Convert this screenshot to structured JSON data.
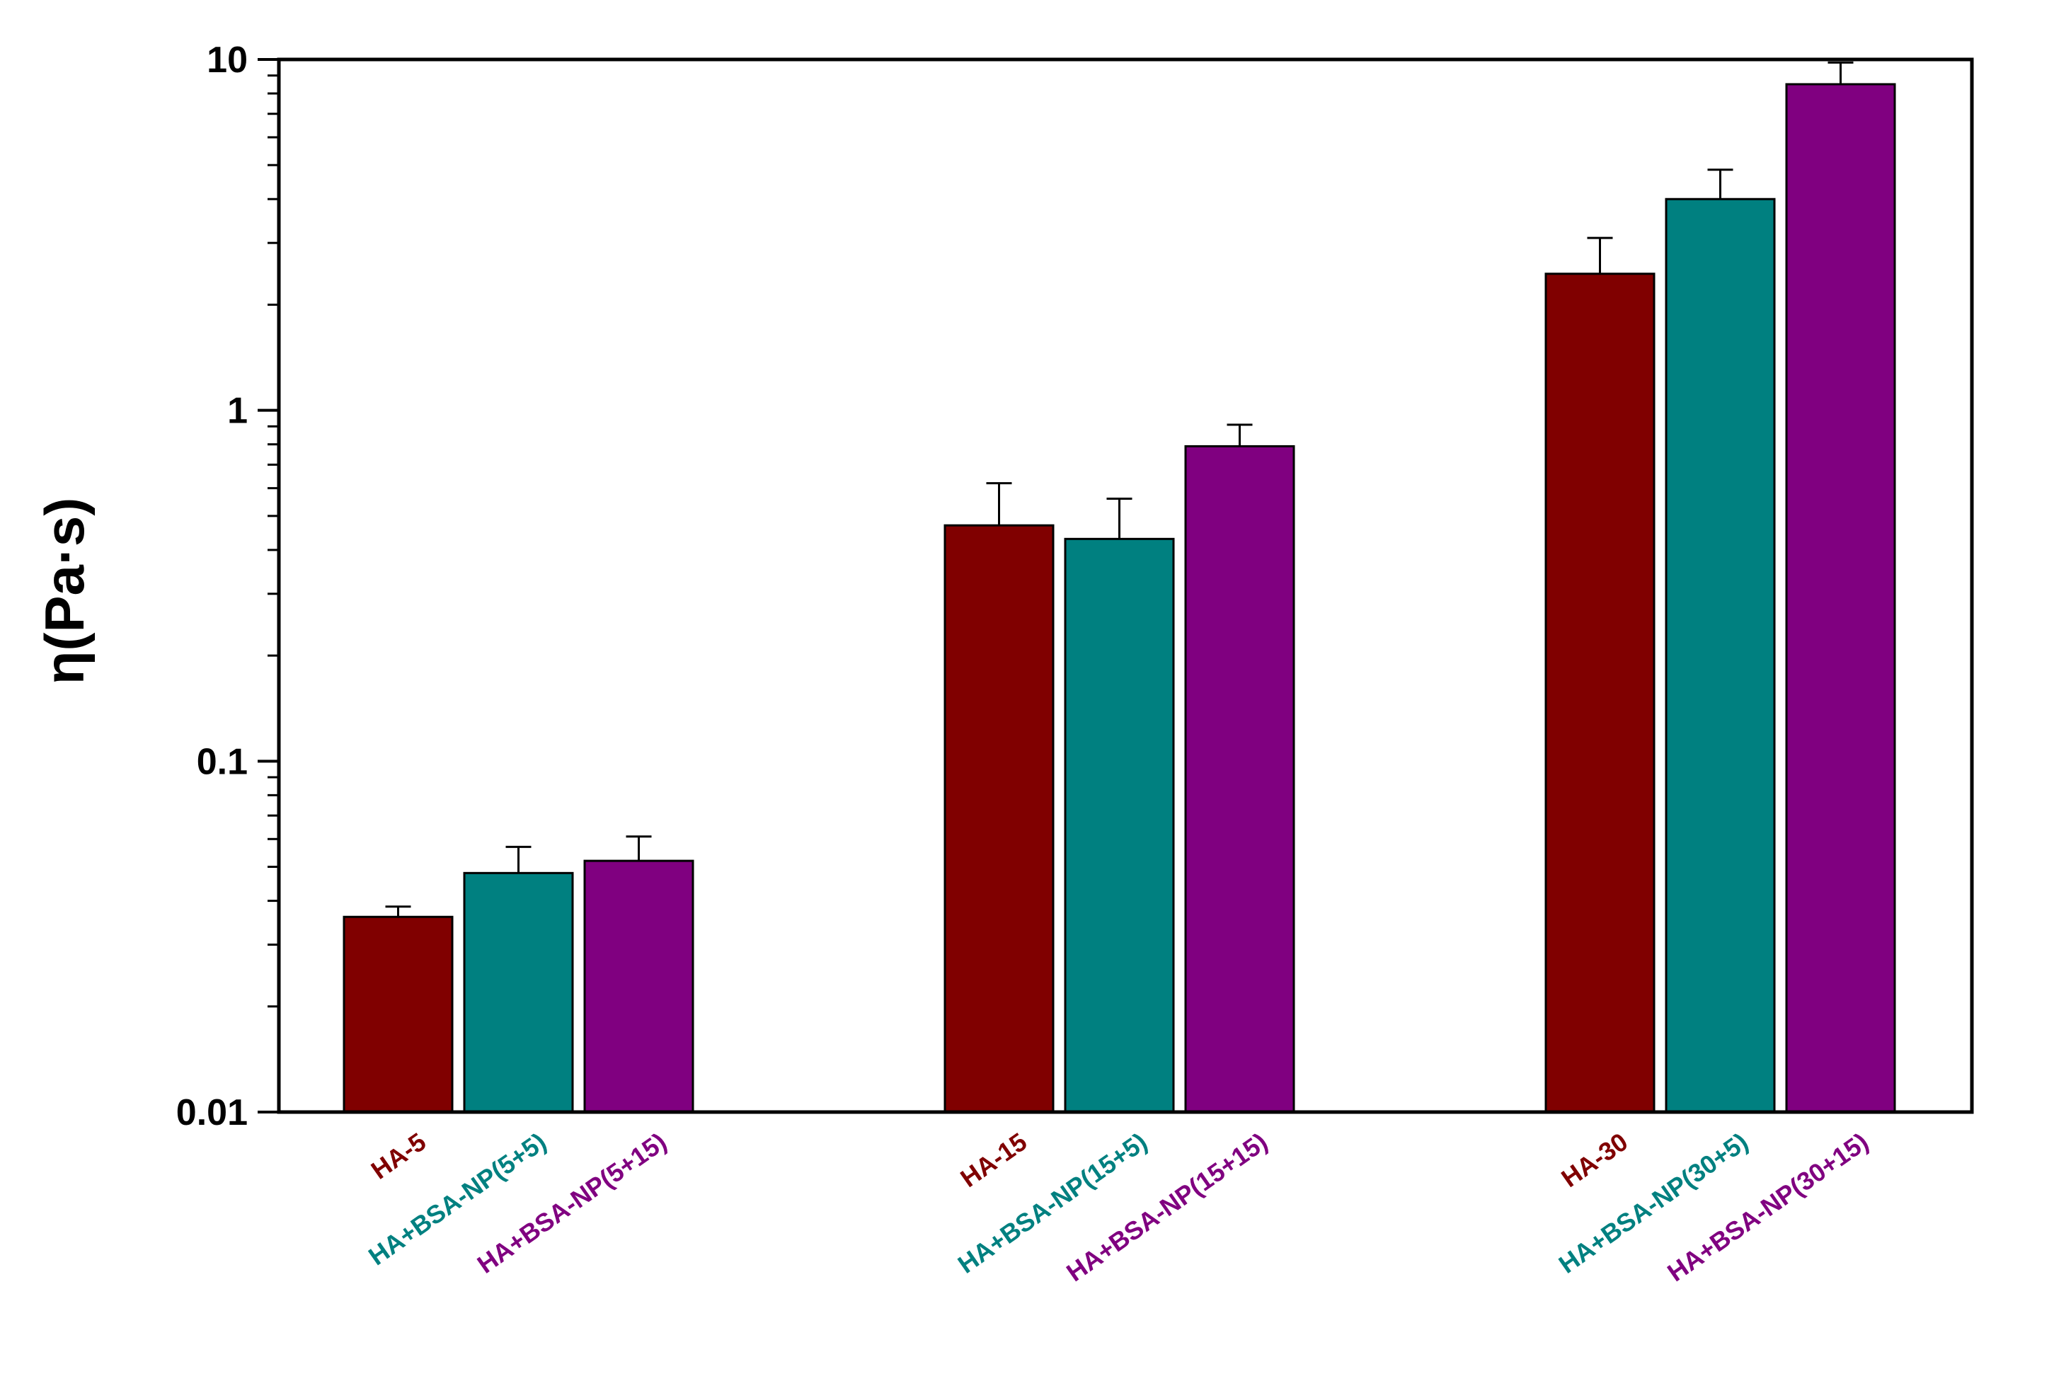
{
  "chart_data": {
    "type": "bar",
    "ylabel": "η(Pa·s)",
    "yscale": "log",
    "ylim": [
      0.01,
      10
    ],
    "yticks": [
      {
        "value": 0.01,
        "label": "0.01"
      },
      {
        "value": 0.1,
        "label": "0.1"
      },
      {
        "value": 1,
        "label": "1"
      },
      {
        "value": 10,
        "label": "10"
      }
    ],
    "grid": false,
    "legend": "none",
    "groups": [
      {
        "bars": [
          {
            "label": "HA-5",
            "value": 0.036,
            "error": 0.0025,
            "color": "#800000"
          },
          {
            "label": "HA+BSA-NP(5+5)",
            "value": 0.048,
            "error": 0.009,
            "color": "#008080"
          },
          {
            "label": "HA+BSA-NP(5+15)",
            "value": 0.052,
            "error": 0.009,
            "color": "#800080"
          }
        ]
      },
      {
        "bars": [
          {
            "label": "HA-15",
            "value": 0.47,
            "error": 0.15,
            "color": "#800000"
          },
          {
            "label": "HA+BSA-NP(15+5)",
            "value": 0.43,
            "error": 0.13,
            "color": "#008080"
          },
          {
            "label": "HA+BSA-NP(15+15)",
            "value": 0.79,
            "error": 0.12,
            "color": "#800080"
          }
        ]
      },
      {
        "bars": [
          {
            "label": "HA-30",
            "value": 2.45,
            "error": 0.65,
            "color": "#800000"
          },
          {
            "label": "HA+BSA-NP(30+5)",
            "value": 4.0,
            "error": 0.85,
            "color": "#008080"
          },
          {
            "label": "HA+BSA-NP(30+15)",
            "value": 8.5,
            "error": 1.3,
            "color": "#800080"
          }
        ]
      }
    ]
  }
}
